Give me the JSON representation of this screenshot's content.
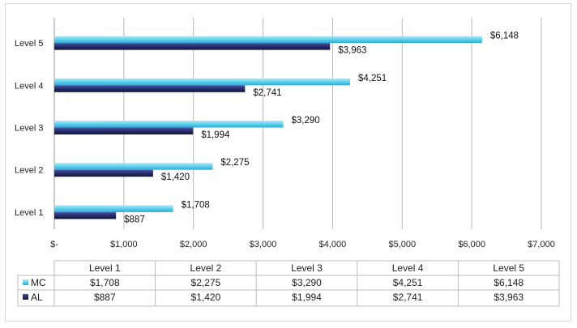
{
  "chart_data": {
    "type": "bar",
    "orientation": "horizontal",
    "categories": [
      "Level 1",
      "Level 2",
      "Level 3",
      "Level 4",
      "Level 5"
    ],
    "series": [
      {
        "name": "MC",
        "values": [
          1708,
          2275,
          3290,
          4251,
          6148
        ],
        "labels": [
          "$1,708",
          "$2,275",
          "$3,290",
          "$4,251",
          "$6,148"
        ],
        "color": "#5ecfee"
      },
      {
        "name": "AL",
        "values": [
          887,
          1420,
          1994,
          2741,
          3963
        ],
        "labels": [
          "$887",
          "$1,420",
          "$1,994",
          "$2,741",
          "$3,963"
        ],
        "color": "#262d6b"
      }
    ],
    "x_ticks": [
      0,
      1000,
      2000,
      3000,
      4000,
      5000,
      6000,
      7000
    ],
    "x_tick_labels": [
      "$-",
      "$1,000",
      "$2,000",
      "$3,000",
      "$4,000",
      "$5,000",
      "$6,000",
      "$7,000"
    ],
    "xlim": [
      0,
      7000
    ],
    "grid": true,
    "legend": "data-table",
    "data_table": {
      "headers": [
        "Level 1",
        "Level 2",
        "Level 3",
        "Level 4",
        "Level 5"
      ],
      "rows": [
        {
          "series": "MC",
          "cells": [
            "$1,708",
            "$2,275",
            "$3,290",
            "$4,251",
            "$6,148"
          ]
        },
        {
          "series": "AL",
          "cells": [
            "$887",
            "$1,420",
            "$1,994",
            "$2,741",
            "$3,963"
          ]
        }
      ]
    }
  }
}
